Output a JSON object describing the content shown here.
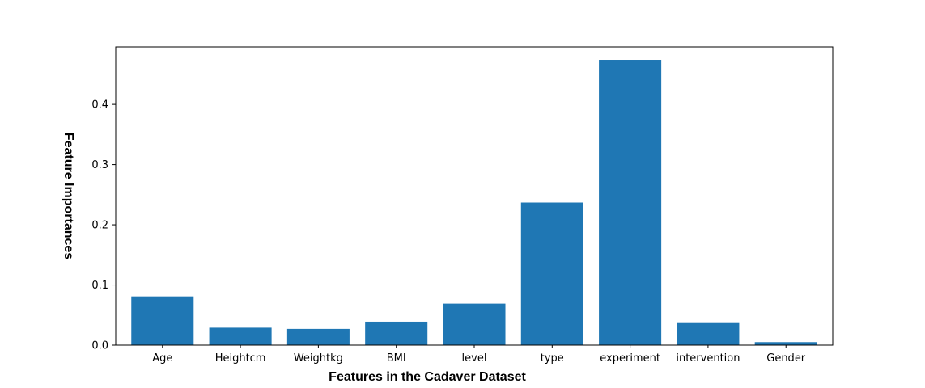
{
  "chart_data": {
    "type": "bar",
    "title": "",
    "xlabel": "Features in the Cadaver Dataset",
    "ylabel": "Feature Importances",
    "categories": [
      "Age",
      "Heightcm",
      "Weightkg",
      "BMI",
      "level",
      "type",
      "experiment",
      "intervention",
      "Gender"
    ],
    "values": [
      0.081,
      0.029,
      0.027,
      0.039,
      0.069,
      0.237,
      0.474,
      0.038,
      0.005
    ],
    "ylim": [
      0,
      0.4955
    ],
    "yticks": [
      0.0,
      0.1,
      0.2,
      0.3,
      0.4
    ],
    "ytick_labels": [
      "0.0",
      "0.1",
      "0.2",
      "0.3",
      "0.4"
    ],
    "grid": false,
    "legend": "none",
    "bar_color": "#1f77b4"
  }
}
